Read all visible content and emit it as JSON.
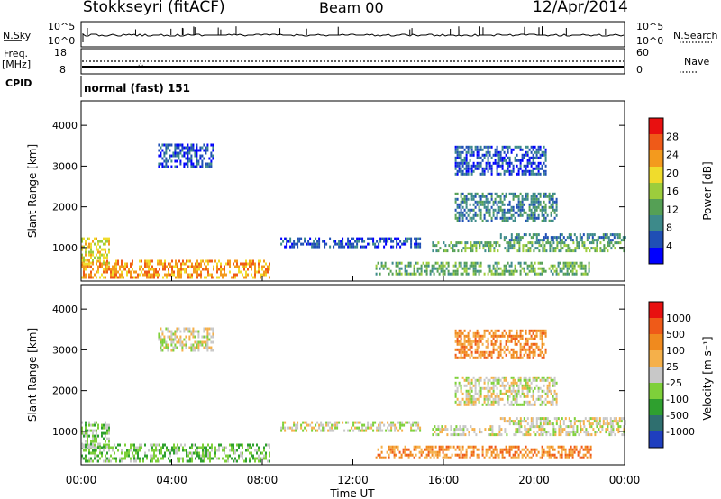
{
  "header": {
    "station": "Stokkseyri (fitACF)",
    "beam": "Beam 00",
    "date": "12/Apr/2014"
  },
  "left_labels": {
    "nsky": "N.Sky",
    "freq": "Freq.",
    "freq_unit": "[MHz]",
    "cpid": "CPID"
  },
  "right_labels": {
    "nsearch": "N.Search",
    "nave": "Nave"
  },
  "cpid_text": "normal (fast) 151",
  "noise_panel": {
    "left_ticks": [
      "10^5",
      "10^0"
    ],
    "right_ticks": [
      "10^5",
      "10^0"
    ]
  },
  "freq_panel": {
    "left_ticks": [
      "18",
      "8"
    ],
    "right_ticks": [
      "60",
      "0"
    ]
  },
  "chart_data": [
    {
      "type": "heatmap",
      "title": "",
      "ylabel": "Slant Range [km]",
      "yticks": [
        1000,
        2000,
        3000,
        4000
      ],
      "ylim": [
        180,
        4600
      ],
      "xlim": [
        0,
        24
      ],
      "xtick_labels": [
        "00:00",
        "04:00",
        "08:00",
        "12:00",
        "16:00",
        "20:00",
        "00:00"
      ],
      "colorbar": {
        "label": "Power [dB]",
        "ticks": [
          "4",
          "8",
          "12",
          "16",
          "20",
          "24",
          "28"
        ],
        "colors": [
          "#0000ff",
          "#1f4fb5",
          "#3d8a8a",
          "#55a055",
          "#9ccd3c",
          "#f0dc2c",
          "#f39a1e",
          "#ef5a18",
          "#e81010"
        ]
      },
      "bands": [
        {
          "t0": 0.0,
          "t1": 8.3,
          "r0": 250,
          "r1": 700,
          "level": 6
        },
        {
          "t0": 0.0,
          "t1": 1.2,
          "r0": 600,
          "r1": 1250,
          "level": 5
        },
        {
          "t0": 8.8,
          "t1": 15.0,
          "r0": 1050,
          "r1": 1250,
          "level": 1
        },
        {
          "t0": 13.0,
          "t1": 22.5,
          "r0": 380,
          "r1": 650,
          "level": 3
        },
        {
          "t0": 15.5,
          "t1": 24.0,
          "r0": 900,
          "r1": 1150,
          "level": 3
        },
        {
          "t0": 18.5,
          "t1": 24.0,
          "r0": 1200,
          "r1": 1350,
          "level": 2
        },
        {
          "t0": 16.5,
          "t1": 21.0,
          "r0": 1650,
          "r1": 2350,
          "level": 2
        },
        {
          "t0": 16.5,
          "t1": 20.5,
          "r0": 2800,
          "r1": 3500,
          "level": 1
        },
        {
          "t0": 3.4,
          "t1": 5.8,
          "r0": 3000,
          "r1": 3550,
          "level": 1
        }
      ]
    },
    {
      "type": "heatmap",
      "title": "",
      "ylabel": "Slant Range [km]",
      "yticks": [
        1000,
        2000,
        3000,
        4000
      ],
      "ylim": [
        180,
        4600
      ],
      "xlim": [
        0,
        24
      ],
      "xlabel": "Time UT",
      "xtick_labels": [
        "00:00",
        "04:00",
        "08:00",
        "12:00",
        "16:00",
        "20:00",
        "00:00"
      ],
      "colorbar": {
        "label": "Velocity [m s⁻¹]",
        "ticks": [
          "1000",
          "500",
          "100",
          "25",
          "-25",
          "-100",
          "-500",
          "-1000"
        ],
        "colors": [
          "#1f3fbf",
          "#2f6f6f",
          "#2fa02f",
          "#7ed03a",
          "#c8c8c8",
          "#f5b04a",
          "#f08a1e",
          "#ef5a18",
          "#e81010"
        ]
      },
      "bands": [
        {
          "t0": 0.0,
          "t1": 8.3,
          "r0": 250,
          "r1": 700,
          "level": 3
        },
        {
          "t0": 0.0,
          "t1": 1.2,
          "r0": 600,
          "r1": 1250,
          "level": 3
        },
        {
          "t0": 8.8,
          "t1": 15.0,
          "r0": 1050,
          "r1": 1250,
          "level": 4
        },
        {
          "t0": 13.0,
          "t1": 22.5,
          "r0": 380,
          "r1": 650,
          "level": 6
        },
        {
          "t0": 15.5,
          "t1": 24.0,
          "r0": 900,
          "r1": 1150,
          "level": 4
        },
        {
          "t0": 18.5,
          "t1": 24.0,
          "r0": 1200,
          "r1": 1350,
          "level": 4
        },
        {
          "t0": 16.5,
          "t1": 21.0,
          "r0": 1650,
          "r1": 2350,
          "level": 4
        },
        {
          "t0": 16.5,
          "t1": 20.5,
          "r0": 2800,
          "r1": 3500,
          "level": 6
        },
        {
          "t0": 3.4,
          "t1": 5.8,
          "r0": 3000,
          "r1": 3550,
          "level": 4
        }
      ]
    }
  ]
}
